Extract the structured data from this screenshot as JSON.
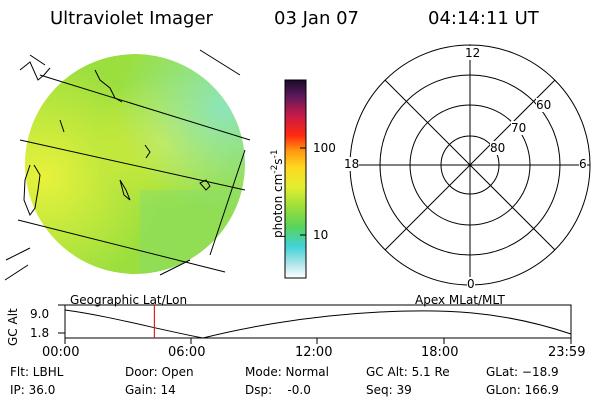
{
  "header": {
    "instrument": "Ultraviolet Imager",
    "date": "03 Jan 07",
    "time": "04:14:11 UT"
  },
  "colorbar": {
    "unit_label": "photon cm",
    "unit_exp1": "-2",
    "unit_mid": "s",
    "unit_exp2": "-1",
    "ticks": [
      "100",
      "10"
    ]
  },
  "polar_plot": {
    "mlt_labels": {
      "top": "12",
      "right": "6",
      "bottom": "0",
      "left": "18"
    },
    "lat_labels": [
      "60",
      "70",
      "80"
    ]
  },
  "orbit_panel": {
    "left_title": "Geographic Lat/Lon",
    "right_title": "Apex MLat/MLT",
    "y_axis_label": "GC Alt",
    "y_ticks": [
      "9.0",
      "1.8"
    ],
    "x_ticks": [
      "00:00",
      "06:00",
      "12:00",
      "18:00",
      "23:59"
    ],
    "current_time_marker_hours": 4.24
  },
  "status": {
    "flt": "Flt: LBHL",
    "ip": "IP: 36.0",
    "door": "Door: Open",
    "gain": "Gain: 14",
    "mode": "Mode: Normal",
    "dsp": "Dsp:    -0.0",
    "gc_alt": "GC Alt: 5.1 Re",
    "seq": "Seq: 39",
    "glat": "GLat: −18.9",
    "glon": "GLon: 166.9"
  },
  "colors": {
    "image_green": "#9adf3c",
    "image_yellow": "#dff03a",
    "image_cyan": "#58dbd6",
    "marker_red": "#e0241c"
  }
}
